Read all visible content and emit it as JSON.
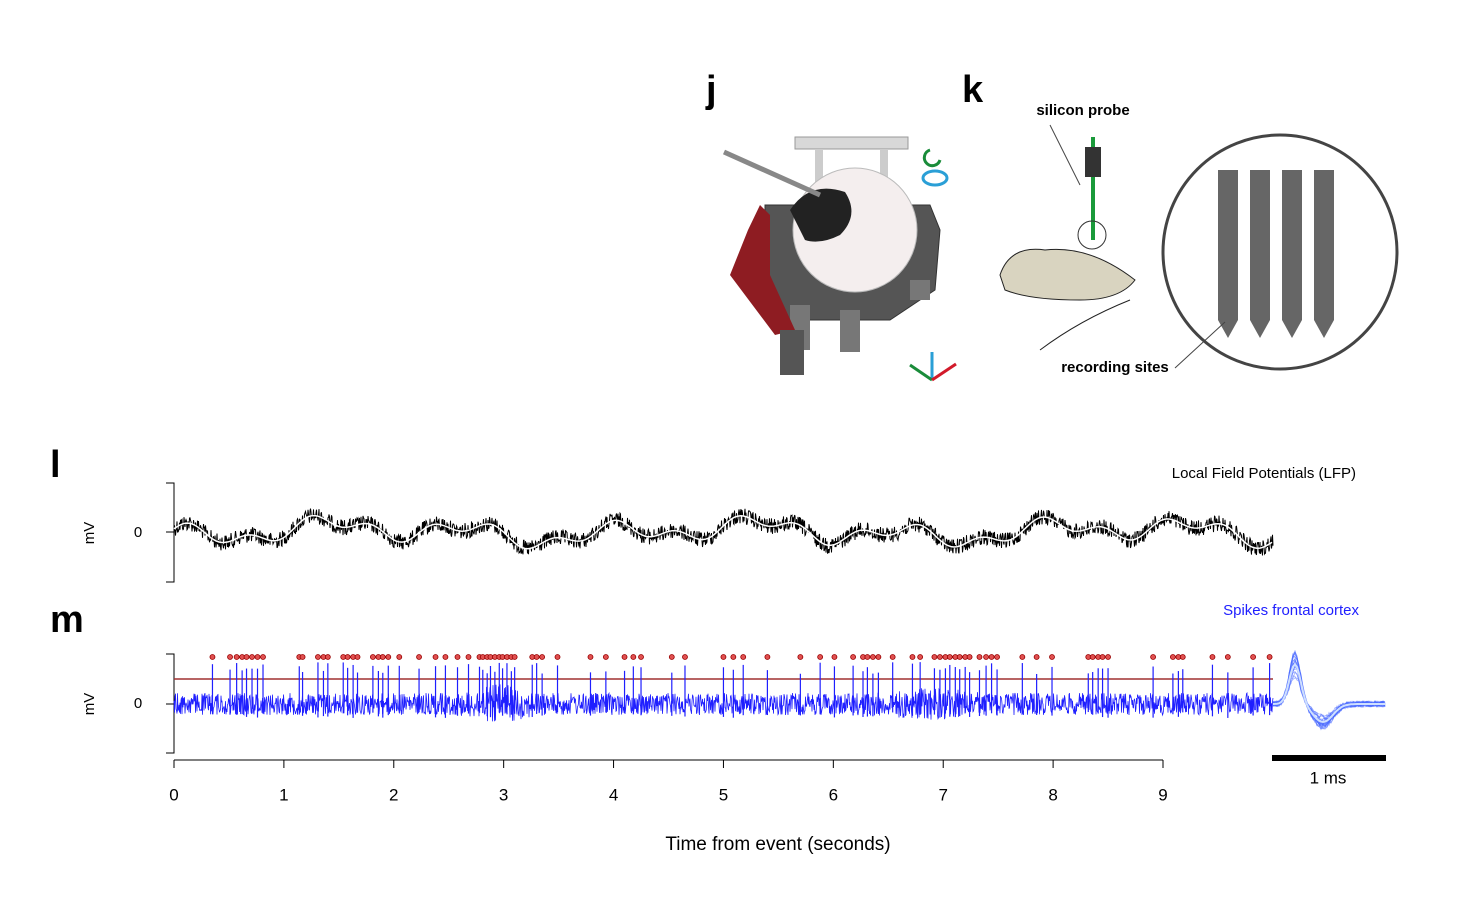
{
  "panels": {
    "j": {
      "label": "j"
    },
    "k": {
      "label": "k",
      "probe_label": "silicon probe",
      "sites_label": "recording sites"
    },
    "l": {
      "label": "l",
      "title": "Local Field Potentials (LFP)",
      "y_label": "mV",
      "y_tick": 0
    },
    "m": {
      "label": "m",
      "title": "Spikes frontal cortex",
      "y_label": "mV",
      "y_tick": 0,
      "scale_bar": "1 ms",
      "spike_times": [
        0.35,
        0.51,
        0.57,
        0.62,
        0.66,
        0.71,
        0.76,
        0.81,
        1.14,
        1.17,
        1.31,
        1.36,
        1.4,
        1.54,
        1.58,
        1.63,
        1.67,
        1.81,
        1.86,
        1.9,
        1.95,
        2.05,
        2.23,
        2.38,
        2.47,
        2.58,
        2.68,
        2.78,
        2.81,
        2.85,
        2.88,
        2.92,
        2.96,
        2.99,
        3.03,
        3.07,
        3.1,
        3.26,
        3.3,
        3.35,
        3.49,
        3.79,
        3.93,
        4.1,
        4.18,
        4.25,
        4.53,
        4.65,
        5.0,
        5.09,
        5.18,
        5.4,
        5.7,
        5.88,
        6.01,
        6.18,
        6.27,
        6.31,
        6.36,
        6.41,
        6.54,
        6.72,
        6.79,
        6.92,
        6.97,
        7.02,
        7.06,
        7.11,
        7.15,
        7.2,
        7.24,
        7.33,
        7.39,
        7.44,
        7.49,
        7.72,
        7.85,
        7.99,
        8.32,
        8.36,
        8.41,
        8.45,
        8.5,
        8.91,
        9.09,
        9.14,
        9.18,
        9.45,
        9.59,
        9.82,
        9.97
      ]
    }
  },
  "x_axis": {
    "label": "Time from event (seconds)",
    "xlim": [
      0,
      9
    ],
    "xticks": [
      0,
      1,
      2,
      3,
      4,
      5,
      6,
      7,
      8,
      9
    ]
  }
}
